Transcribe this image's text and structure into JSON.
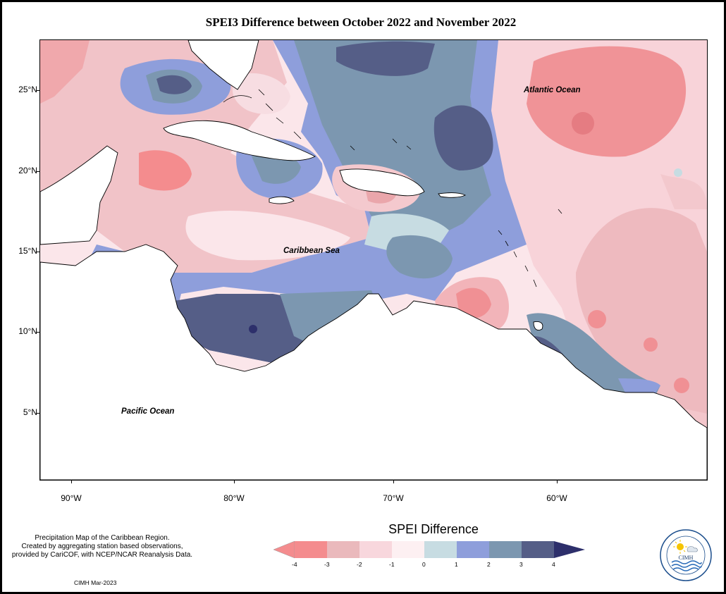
{
  "title": "SPEI3 Difference between October 2022 and November 2022",
  "axes": {
    "y_labels": [
      "25°N",
      "20°N",
      "15°N",
      "10°N",
      "5°N"
    ],
    "x_labels": [
      "90°W",
      "80°W",
      "70°W",
      "60°W"
    ]
  },
  "oceans": {
    "atlantic": "Atlantic Ocean",
    "caribbean": "Caribbean Sea",
    "pacific": "Pacific Ocean"
  },
  "legend": {
    "title": "SPEI Difference",
    "ticks": [
      "-4",
      "-3",
      "-2",
      "-1",
      "0",
      "1",
      "2",
      "3",
      "4"
    ],
    "colors": [
      "#f48c8e",
      "#eab9bc",
      "#f8d7dd",
      "#fdf0f2",
      "#c7dce2",
      "#8e9edb",
      "#7c97b0",
      "#555e87",
      "#2d2f6b"
    ]
  },
  "credit": {
    "line1": "Precipitation Map of the Caribbean Region.",
    "line2": "Created by aggregating station based observations,",
    "line3": "provided by CariCOF, with NCEP/NCAR Reanalysis Data."
  },
  "stamp": "CIMH Mar-2023",
  "logo": {
    "text": "CIMH",
    "icon": "sun-cloud-waves-icon"
  }
}
